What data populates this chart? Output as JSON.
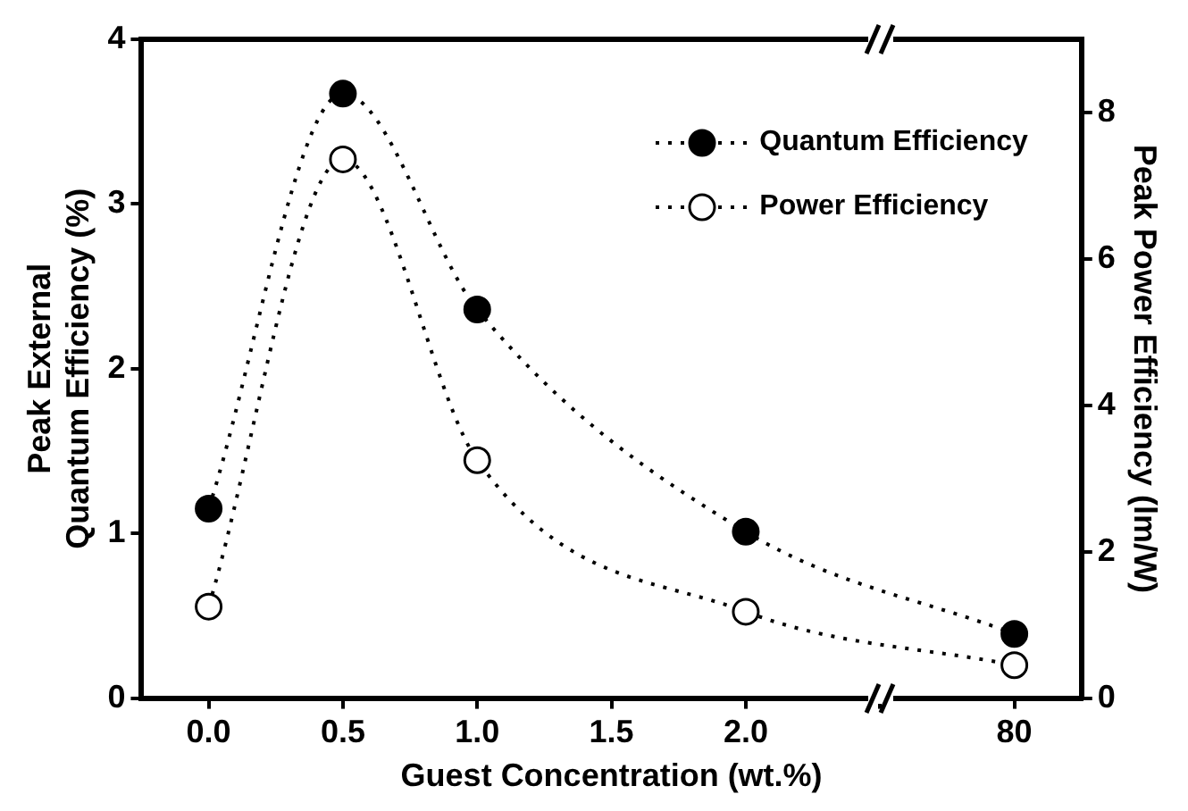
{
  "chart_data": {
    "type": "line",
    "xlabel": "Guest Concentration (wt.%)",
    "ylabel": "Peak External\nQuantum Efficiency (%)",
    "y2label": "Peak Power Efficiency (lm/W)",
    "categories": [
      "0.0",
      "0.5",
      "1.0",
      "1.5",
      "2.0",
      null,
      "80"
    ],
    "series": [
      {
        "name": "Quantum Efficiency",
        "color": "#000000",
        "values": [
          1.15,
          3.67,
          2.36,
          null,
          1.01,
          null,
          0.39
        ]
      },
      {
        "name": "Power Efficiency",
        "color": "#000000",
        "axis": "y2",
        "values": [
          1.25,
          7.36,
          3.25,
          null,
          1.18,
          null,
          0.45
        ]
      }
    ],
    "ylim": [
      0,
      4
    ],
    "yticks": [
      0,
      1,
      2,
      3,
      4
    ],
    "y2lim": [
      0,
      9
    ],
    "y2ticks": [
      0,
      2,
      4,
      6,
      8
    ],
    "legend": "top right",
    "marker": "circle",
    "line_style": "dotted",
    "grid": false
  }
}
